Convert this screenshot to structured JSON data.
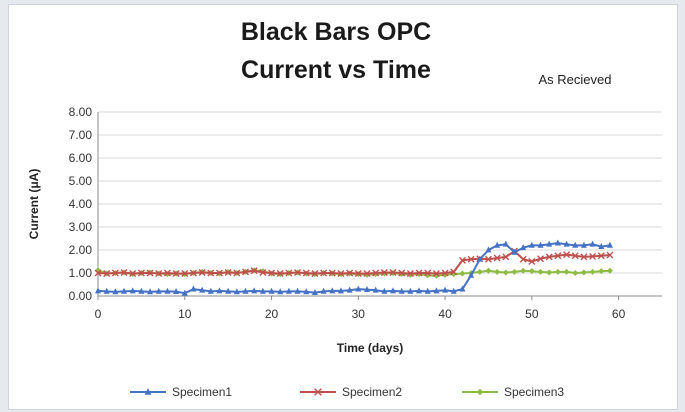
{
  "chart_data": {
    "type": "line",
    "title_line1": "Black Bars OPC",
    "title_line2": "Current vs Time",
    "annotation": "As Recieved",
    "xlabel": "Time (days)",
    "ylabel": "Current (μA)",
    "xlim": [
      0,
      65
    ],
    "ylim": [
      0,
      8
    ],
    "xticks": [
      0,
      10,
      20,
      30,
      40,
      50,
      60
    ],
    "yticks": [
      "0.00",
      "1.00",
      "2.00",
      "3.00",
      "4.00",
      "5.00",
      "6.00",
      "7.00",
      "8.00"
    ],
    "grid": "horizontal",
    "legend_position": "bottom",
    "series": [
      {
        "name": "Specimen1",
        "color": "#4472c4",
        "marker": "triangle",
        "points": [
          [
            0,
            0.22
          ],
          [
            1,
            0.2
          ],
          [
            2,
            0.18
          ],
          [
            3,
            0.2
          ],
          [
            4,
            0.22
          ],
          [
            5,
            0.2
          ],
          [
            6,
            0.18
          ],
          [
            7,
            0.2
          ],
          [
            8,
            0.2
          ],
          [
            9,
            0.19
          ],
          [
            10,
            0.12
          ],
          [
            11,
            0.3
          ],
          [
            12,
            0.25
          ],
          [
            13,
            0.2
          ],
          [
            14,
            0.22
          ],
          [
            15,
            0.2
          ],
          [
            16,
            0.18
          ],
          [
            17,
            0.2
          ],
          [
            18,
            0.22
          ],
          [
            19,
            0.2
          ],
          [
            20,
            0.2
          ],
          [
            21,
            0.18
          ],
          [
            22,
            0.2
          ],
          [
            23,
            0.2
          ],
          [
            24,
            0.18
          ],
          [
            25,
            0.15
          ],
          [
            26,
            0.2
          ],
          [
            27,
            0.22
          ],
          [
            28,
            0.22
          ],
          [
            29,
            0.25
          ],
          [
            30,
            0.3
          ],
          [
            31,
            0.28
          ],
          [
            32,
            0.25
          ],
          [
            33,
            0.2
          ],
          [
            34,
            0.22
          ],
          [
            35,
            0.2
          ],
          [
            36,
            0.2
          ],
          [
            37,
            0.22
          ],
          [
            38,
            0.2
          ],
          [
            39,
            0.22
          ],
          [
            40,
            0.25
          ],
          [
            41,
            0.2
          ],
          [
            42,
            0.3
          ],
          [
            43,
            0.9
          ],
          [
            44,
            1.6
          ],
          [
            45,
            2.0
          ],
          [
            46,
            2.2
          ],
          [
            47,
            2.25
          ],
          [
            48,
            1.9
          ],
          [
            49,
            2.1
          ],
          [
            50,
            2.2
          ],
          [
            51,
            2.2
          ],
          [
            52,
            2.25
          ],
          [
            53,
            2.3
          ],
          [
            54,
            2.25
          ],
          [
            55,
            2.2
          ],
          [
            56,
            2.2
          ],
          [
            57,
            2.25
          ],
          [
            58,
            2.15
          ],
          [
            59,
            2.2
          ]
        ]
      },
      {
        "name": "Specimen2",
        "color": "#c0504d",
        "marker": "x",
        "points": [
          [
            0,
            1.0
          ],
          [
            1,
            0.98
          ],
          [
            2,
            1.0
          ],
          [
            3,
            1.02
          ],
          [
            4,
            0.98
          ],
          [
            5,
            1.0
          ],
          [
            6,
            1.0
          ],
          [
            7,
            0.98
          ],
          [
            8,
            1.0
          ],
          [
            9,
            0.98
          ],
          [
            10,
            0.98
          ],
          [
            11,
            1.0
          ],
          [
            12,
            1.02
          ],
          [
            13,
            1.0
          ],
          [
            14,
            1.0
          ],
          [
            15,
            1.02
          ],
          [
            16,
            1.0
          ],
          [
            17,
            1.05
          ],
          [
            18,
            1.1
          ],
          [
            19,
            1.02
          ],
          [
            20,
            1.0
          ],
          [
            21,
            0.98
          ],
          [
            22,
            1.0
          ],
          [
            23,
            1.02
          ],
          [
            24,
            1.0
          ],
          [
            25,
            0.98
          ],
          [
            26,
            1.0
          ],
          [
            27,
            1.0
          ],
          [
            28,
            0.98
          ],
          [
            29,
            1.0
          ],
          [
            30,
            0.98
          ],
          [
            31,
            0.98
          ],
          [
            32,
            1.0
          ],
          [
            33,
            1.02
          ],
          [
            34,
            1.02
          ],
          [
            35,
            1.0
          ],
          [
            36,
            0.98
          ],
          [
            37,
            1.0
          ],
          [
            38,
            1.0
          ],
          [
            39,
            0.98
          ],
          [
            40,
            1.0
          ],
          [
            41,
            1.05
          ],
          [
            42,
            1.55
          ],
          [
            43,
            1.6
          ],
          [
            44,
            1.62
          ],
          [
            45,
            1.6
          ],
          [
            46,
            1.65
          ],
          [
            47,
            1.7
          ],
          [
            48,
            1.95
          ],
          [
            49,
            1.6
          ],
          [
            50,
            1.5
          ],
          [
            51,
            1.62
          ],
          [
            52,
            1.7
          ],
          [
            53,
            1.75
          ],
          [
            54,
            1.8
          ],
          [
            55,
            1.75
          ],
          [
            56,
            1.7
          ],
          [
            57,
            1.72
          ],
          [
            58,
            1.75
          ],
          [
            59,
            1.78
          ]
        ]
      },
      {
        "name": "Specimen3",
        "color": "#8dbb44",
        "marker": "diamond",
        "points": [
          [
            0,
            1.12
          ],
          [
            1,
            0.98
          ],
          [
            2,
            1.0
          ],
          [
            3,
            1.02
          ],
          [
            4,
            0.95
          ],
          [
            5,
            1.0
          ],
          [
            6,
            1.02
          ],
          [
            7,
            0.98
          ],
          [
            8,
            0.95
          ],
          [
            9,
            0.98
          ],
          [
            10,
            0.95
          ],
          [
            11,
            1.0
          ],
          [
            12,
            1.05
          ],
          [
            13,
            1.0
          ],
          [
            14,
            0.98
          ],
          [
            15,
            1.05
          ],
          [
            16,
            1.0
          ],
          [
            17,
            1.05
          ],
          [
            18,
            1.12
          ],
          [
            19,
            1.08
          ],
          [
            20,
            0.98
          ],
          [
            21,
            0.95
          ],
          [
            22,
            1.0
          ],
          [
            23,
            1.02
          ],
          [
            24,
            0.98
          ],
          [
            25,
            0.95
          ],
          [
            26,
            1.0
          ],
          [
            27,
            0.98
          ],
          [
            28,
            0.95
          ],
          [
            29,
            0.98
          ],
          [
            30,
            0.95
          ],
          [
            31,
            0.92
          ],
          [
            32,
            0.95
          ],
          [
            33,
            0.98
          ],
          [
            34,
            1.0
          ],
          [
            35,
            0.95
          ],
          [
            36,
            0.92
          ],
          [
            37,
            0.95
          ],
          [
            38,
            0.9
          ],
          [
            39,
            0.88
          ],
          [
            40,
            0.92
          ],
          [
            41,
            0.95
          ],
          [
            42,
            0.98
          ],
          [
            43,
            1.0
          ],
          [
            44,
            1.05
          ],
          [
            45,
            1.1
          ],
          [
            46,
            1.05
          ],
          [
            47,
            1.02
          ],
          [
            48,
            1.05
          ],
          [
            49,
            1.1
          ],
          [
            50,
            1.08
          ],
          [
            51,
            1.05
          ],
          [
            52,
            1.02
          ],
          [
            53,
            1.05
          ],
          [
            54,
            1.05
          ],
          [
            55,
            1.0
          ],
          [
            56,
            1.02
          ],
          [
            57,
            1.05
          ],
          [
            58,
            1.08
          ],
          [
            59,
            1.1
          ]
        ]
      }
    ]
  }
}
